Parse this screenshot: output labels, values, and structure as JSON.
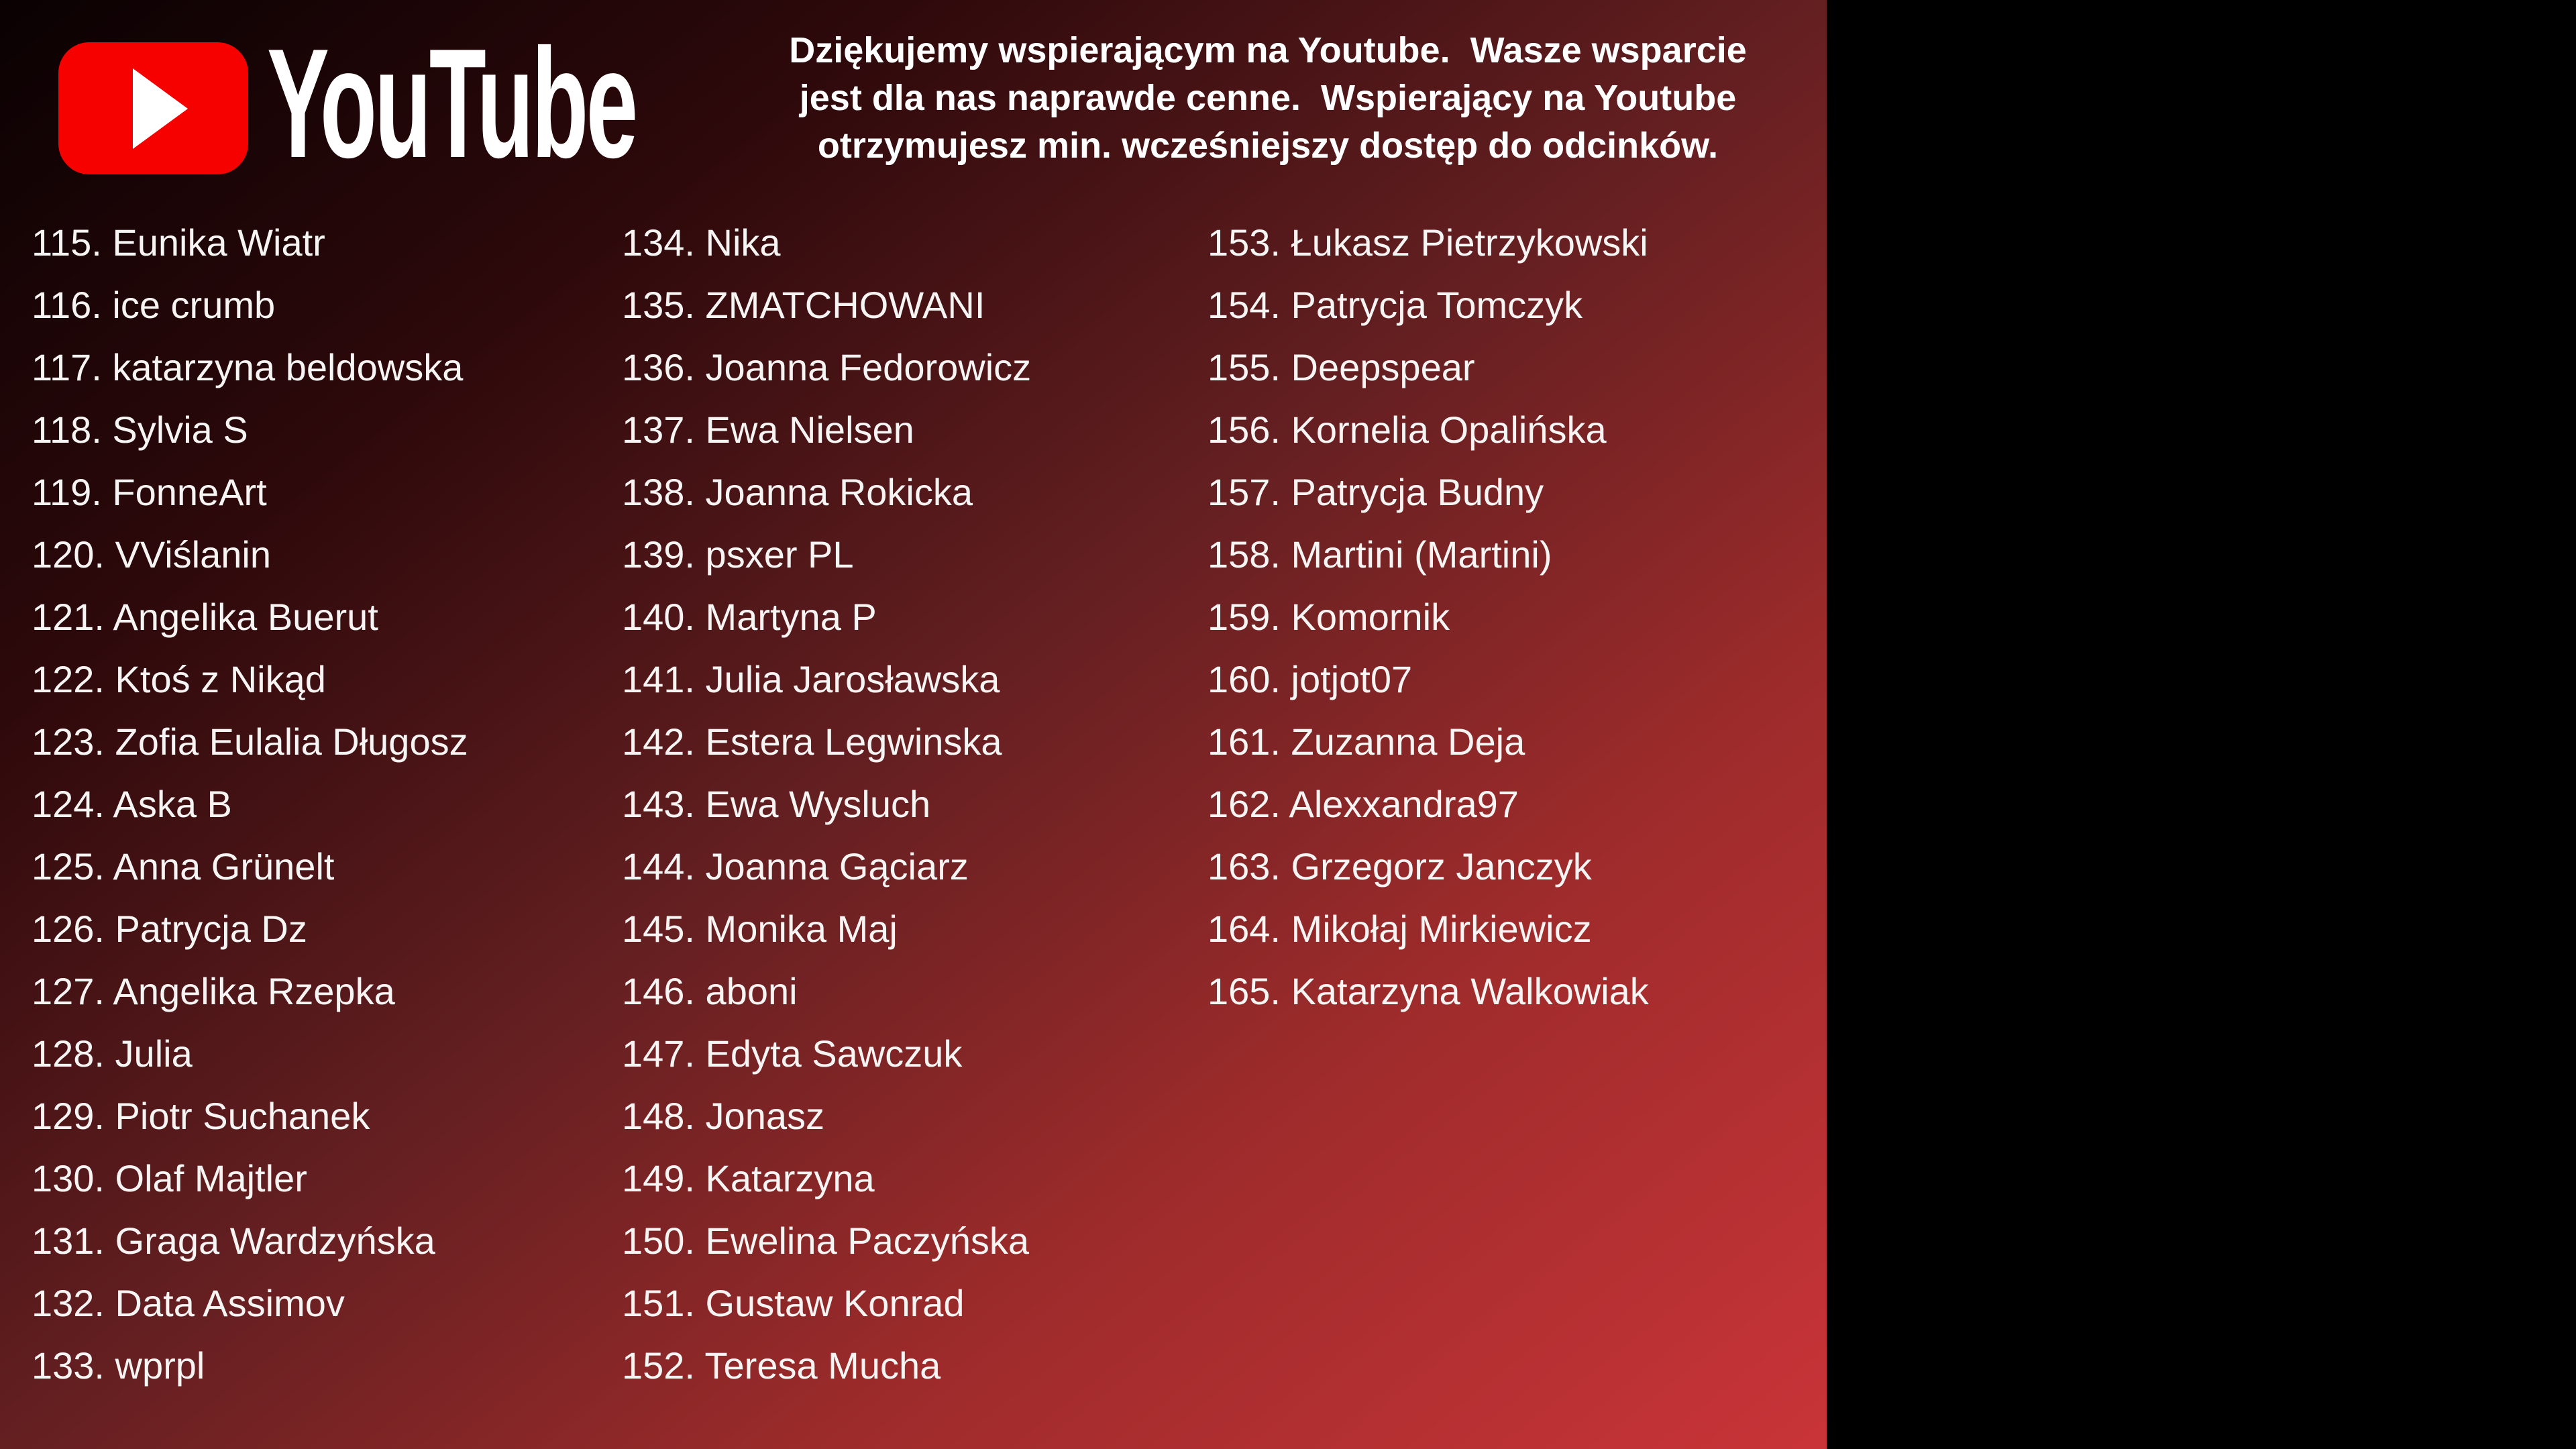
{
  "logo": {
    "brand_text": "YouTube",
    "icon": "youtube-play-icon",
    "red": "#f70000"
  },
  "header": {
    "lines": [
      "Dziękujemy wspierającym na Youtube.  Wasze wsparcie",
      "jest dla nas naprawde cenne.  Wspierający na Youtube",
      "otrzymujesz min. wcześniejszy dostęp do odcinków."
    ]
  },
  "supporters": {
    "columns": [
      [
        "115. Eunika Wiatr",
        "116. ice crumb",
        "117. katarzyna beldowska",
        "118. Sylvia S",
        "119. FonneArt",
        "120. VViślanin",
        "121. Angelika Buerut",
        "122. Ktoś z Nikąd",
        "123. Zofia Eulalia Długosz",
        "124. Aska B",
        "125. Anna Grünelt",
        "126. Patrycja Dz",
        "127. Angelika Rzepka",
        "128. Julia",
        "129. Piotr Suchanek",
        "130. Olaf Majtler",
        "131. Graga Wardzyńska",
        "132. Data Assimov",
        "133. wprpl"
      ],
      [
        "134. Nika",
        "135. ZMATCHOWANI",
        "136. Joanna Fedorowicz",
        "137. Ewa Nielsen",
        "138. Joanna Rokicka",
        "139. psxer PL",
        "140. Martyna P",
        "141. Julia Jarosławska",
        "142. Estera Legwinska",
        "143. Ewa Wysluch",
        "144. Joanna Gąciarz",
        "145. Monika Maj",
        "146. aboni",
        "147. Edyta Sawczuk",
        "148. Jonasz",
        "149. Katarzyna",
        "150. Ewelina Paczyńska",
        "151. Gustaw Konrad",
        "152. Teresa Mucha"
      ],
      [
        "153. Łukasz Pietrzykowski",
        "154. Patrycja Tomczyk",
        "155. Deepspear",
        "156. Kornelia Opalińska",
        "157. Patrycja Budny",
        "158. Martini (Martini)",
        "159. Komornik",
        "160. jotjot07",
        "161. Zuzanna Deja",
        "162. Alexxandra97",
        "163. Grzegorz Janczyk",
        "164. Mikołaj Mirkiewicz",
        "165. Katarzyna Walkowiak"
      ]
    ]
  },
  "colors": {
    "logo_red": "#f70000",
    "text_white": "#ffffff",
    "bg_gradient_start": "#0a0102",
    "bg_gradient_end": "#c93438",
    "side_panel": "#000000"
  }
}
